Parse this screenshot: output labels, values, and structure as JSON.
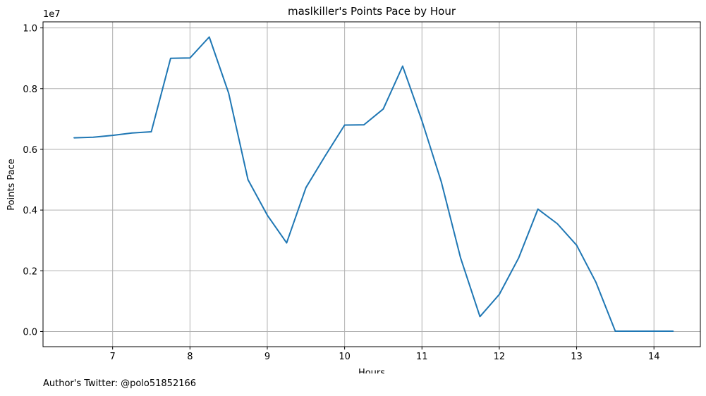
{
  "chart_data": {
    "type": "line",
    "title": "maslkiller's Points Pace by Hour",
    "xlabel": "Hours",
    "ylabel": "Points Pace",
    "y_offset_label": "1e7",
    "xlim": [
      6.1,
      14.6
    ],
    "ylim": [
      -500000,
      10200000
    ],
    "x_ticks": [
      7,
      8,
      9,
      10,
      11,
      12,
      13,
      14
    ],
    "y_ticks": [
      0,
      2000000,
      4000000,
      6000000,
      8000000,
      10000000
    ],
    "y_tick_labels": [
      "0.0",
      "0.2",
      "0.4",
      "0.6",
      "0.8",
      "1.0"
    ],
    "grid": true,
    "series": [
      {
        "color": "#1f77b4",
        "x": [
          6.5,
          6.75,
          7.0,
          7.25,
          7.5,
          7.75,
          8.0,
          8.25,
          8.5,
          8.75,
          9.0,
          9.25,
          9.5,
          9.75,
          10.0,
          10.25,
          10.5,
          10.75,
          11.0,
          11.25,
          11.5,
          11.75,
          12.0,
          12.25,
          12.5,
          12.75,
          13.0,
          13.25,
          13.5,
          13.75,
          14.0,
          14.25
        ],
        "y": [
          6380000,
          6400000,
          6460000,
          6540000,
          6580000,
          9000000,
          9010000,
          9700000,
          7850000,
          5000000,
          3830000,
          2920000,
          4740000,
          5790000,
          6800000,
          6810000,
          7330000,
          8740000,
          6940000,
          4930000,
          2420000,
          490000,
          1220000,
          2420000,
          4030000,
          3550000,
          2840000,
          1620000,
          10000,
          10000,
          10000,
          10000
        ]
      }
    ]
  },
  "footer": {
    "text": "Author's Twitter: @polo51852166"
  }
}
